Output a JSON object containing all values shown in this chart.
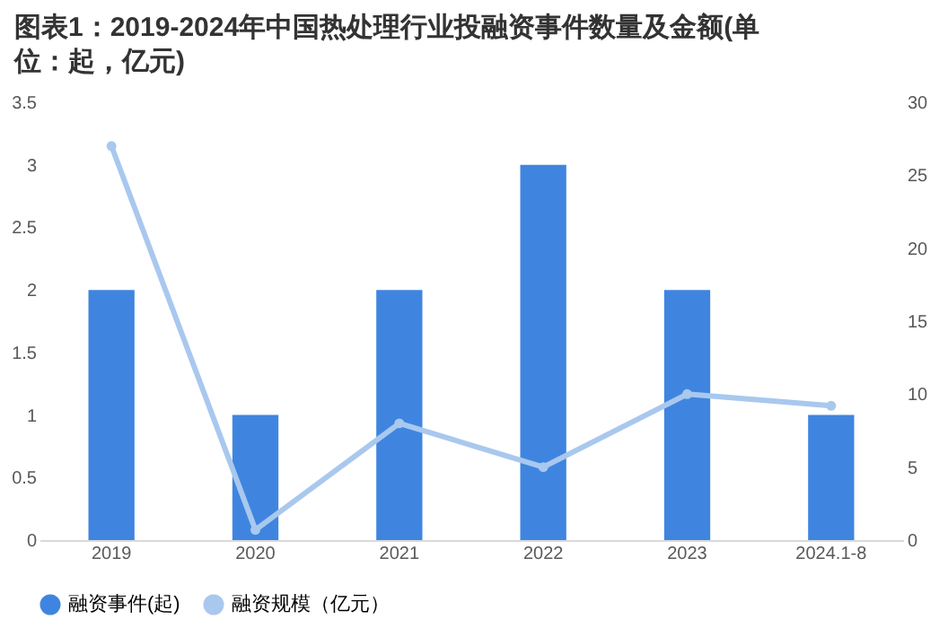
{
  "chart_data": {
    "type": "bar",
    "title": "图表1：2019-2024年中国热处理行业投融资事件数量及金额(单位：起，亿元)",
    "categories": [
      "2019",
      "2020",
      "2021",
      "2022",
      "2023",
      "2024.1-8"
    ],
    "series": [
      {
        "name": "融资事件(起)",
        "color": "#3f85e0",
        "values": [
          2,
          1,
          2,
          3,
          2,
          1
        ]
      },
      {
        "name": "融资规模（亿元）",
        "type": "line",
        "axis": "y2",
        "color": "#a9c8ee",
        "marker": "circle",
        "values": [
          27,
          0.7,
          8,
          5,
          10,
          9.2
        ]
      }
    ],
    "ylim": [
      0,
      3.5
    ],
    "yticks": [
      0,
      0.5,
      1,
      1.5,
      2,
      2.5,
      3,
      3.5
    ],
    "y2lim": [
      0,
      30
    ],
    "y2ticks": [
      0,
      5,
      10,
      15,
      20,
      25,
      30
    ],
    "grid": false,
    "legend": "bottom",
    "line_style": "solid"
  }
}
